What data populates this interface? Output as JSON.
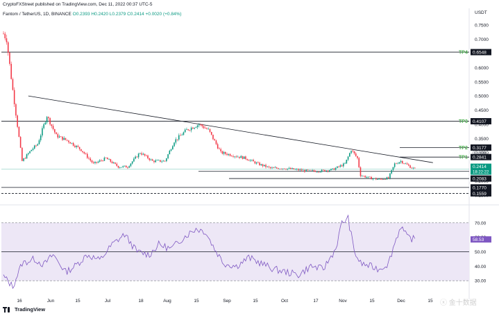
{
  "header": {
    "published_note": "CryptoFXStreet published on TradingView.com, Dec 11, 2022 00:37 UTC-5",
    "symbol": "Fantom / TetherUS, 1D, BINANCE",
    "ohlc": "O0.2393 H0.2420 L0.2379 C0.2414 +0.0020 (+0.84%)"
  },
  "footer": {
    "brand": "TradingView",
    "watermark": "ⓧ 金十数据"
  },
  "colors": {
    "up": "#089981",
    "down": "#f23645",
    "line": "#131722",
    "tp_green": "#4caf50",
    "rsi": "#7e57c2",
    "rsi_band": "#ede7f6"
  },
  "chart_data": [
    {
      "type": "candlestick",
      "title": "Fantom / TetherUS, 1D, BINANCE",
      "currency": "USDT",
      "ylim": [
        0.13,
        0.78
      ],
      "y_ticks": [
        "0.7500",
        "0.7000",
        "0.6500",
        "0.6000",
        "0.5500",
        "0.5000",
        "0.4500",
        "0.4000",
        "0.3500",
        "0.3000",
        "0.2500",
        "0.2000",
        "0.1500"
      ],
      "x_ticks": [
        "16",
        "Jun",
        "15",
        "Jul",
        "18",
        "Aug",
        "15",
        "Sep",
        "15",
        "Oct",
        "17",
        "Nov",
        "15",
        "Dec",
        "15"
      ],
      "anchors": [
        [
          0,
          0.72
        ],
        [
          2,
          0.7
        ],
        [
          6,
          0.52
        ],
        [
          12,
          0.27
        ],
        [
          18,
          0.31
        ],
        [
          22,
          0.33
        ],
        [
          28,
          0.43
        ],
        [
          34,
          0.36
        ],
        [
          42,
          0.34
        ],
        [
          50,
          0.31
        ],
        [
          58,
          0.26
        ],
        [
          66,
          0.28
        ],
        [
          74,
          0.25
        ],
        [
          80,
          0.25
        ],
        [
          88,
          0.3
        ],
        [
          96,
          0.27
        ],
        [
          104,
          0.27
        ],
        [
          110,
          0.34
        ],
        [
          118,
          0.38
        ],
        [
          126,
          0.4
        ],
        [
          132,
          0.38
        ],
        [
          140,
          0.3
        ],
        [
          148,
          0.29
        ],
        [
          156,
          0.28
        ],
        [
          164,
          0.26
        ],
        [
          172,
          0.245
        ],
        [
          180,
          0.245
        ],
        [
          188,
          0.24
        ],
        [
          196,
          0.235
        ],
        [
          204,
          0.235
        ],
        [
          212,
          0.24
        ],
        [
          220,
          0.26
        ],
        [
          224,
          0.31
        ],
        [
          228,
          0.28
        ],
        [
          230,
          0.22
        ],
        [
          236,
          0.21
        ],
        [
          242,
          0.205
        ],
        [
          248,
          0.21
        ],
        [
          252,
          0.26
        ],
        [
          256,
          0.27
        ],
        [
          262,
          0.25
        ],
        [
          265,
          0.2414
        ]
      ],
      "resistance_line": {
        "from": [
          16,
          0.5
        ],
        "to": [
          265,
          0.2841
        ]
      },
      "levels": [
        {
          "name": "TP4",
          "price": "0.6548",
          "value": 0.6548
        },
        {
          "name": "TP3",
          "price": "0.4107",
          "value": 0.4107
        },
        {
          "name": "TP2",
          "price": "0.3177",
          "value": 0.3177
        },
        {
          "name": "TP1",
          "price": "0.2841",
          "value": 0.2841
        },
        {
          "name": "",
          "price": "0.2337",
          "value": 0.2337
        },
        {
          "name": "",
          "price": "0.2083",
          "value": 0.2083
        },
        {
          "name": "",
          "price": "0.1770",
          "value": 0.177
        },
        {
          "name": "",
          "price": "0.1559",
          "value": 0.1559
        }
      ],
      "faint_labels": [
        "0.3006"
      ],
      "current": {
        "price": "0.2414",
        "countdown": "18:22:22",
        "value": 0.2414
      }
    },
    {
      "type": "line",
      "title": "RSI",
      "ylim": [
        20,
        80
      ],
      "y_ticks": [
        "70.00",
        "60.00",
        "50.00",
        "40.00",
        "30.00"
      ],
      "band": [
        30,
        70
      ],
      "midline": 50,
      "current": "58.53",
      "anchors": [
        [
          0,
          33
        ],
        [
          6,
          26
        ],
        [
          12,
          42
        ],
        [
          20,
          45
        ],
        [
          26,
          41
        ],
        [
          32,
          48
        ],
        [
          40,
          36
        ],
        [
          46,
          40
        ],
        [
          54,
          48
        ],
        [
          62,
          44
        ],
        [
          70,
          55
        ],
        [
          78,
          62
        ],
        [
          86,
          50
        ],
        [
          94,
          48
        ],
        [
          100,
          55
        ],
        [
          108,
          52
        ],
        [
          116,
          60
        ],
        [
          124,
          66
        ],
        [
          130,
          64
        ],
        [
          136,
          52
        ],
        [
          142,
          42
        ],
        [
          150,
          40
        ],
        [
          158,
          46
        ],
        [
          166,
          42
        ],
        [
          174,
          38
        ],
        [
          182,
          36
        ],
        [
          190,
          34
        ],
        [
          198,
          40
        ],
        [
          206,
          38
        ],
        [
          214,
          52
        ],
        [
          218,
          70
        ],
        [
          222,
          73
        ],
        [
          226,
          50
        ],
        [
          230,
          42
        ],
        [
          236,
          40
        ],
        [
          242,
          38
        ],
        [
          248,
          42
        ],
        [
          252,
          56
        ],
        [
          256,
          68
        ],
        [
          260,
          60
        ],
        [
          265,
          58.5
        ]
      ]
    }
  ]
}
